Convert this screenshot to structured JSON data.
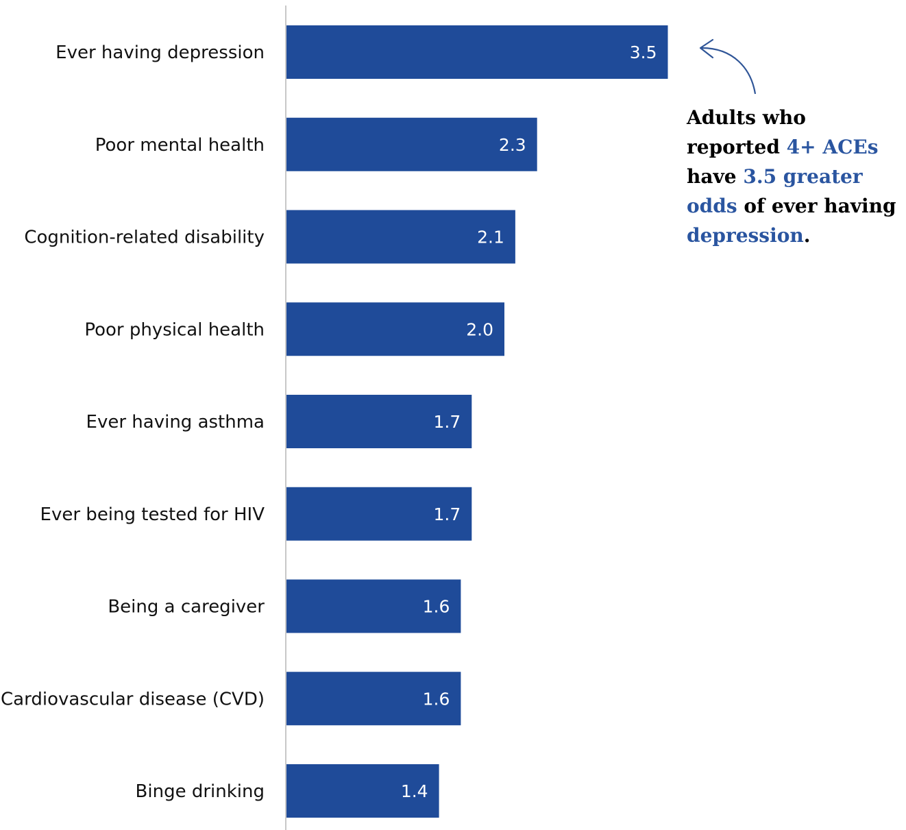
{
  "chart_data": {
    "type": "bar",
    "orientation": "horizontal",
    "categories": [
      "Ever having depression",
      "Poor mental health",
      "Cognition-related disability",
      "Poor physical health",
      "Ever having asthma",
      "Ever being tested for HIV",
      "Being a caregiver",
      "Cardiovascular disease (CVD)",
      "Binge drinking"
    ],
    "values": [
      3.5,
      2.3,
      2.1,
      2.0,
      1.7,
      1.7,
      1.6,
      1.6,
      1.4
    ],
    "value_labels": [
      "3.5",
      "2.3",
      "2.1",
      "2.0",
      "1.7",
      "1.7",
      "1.6",
      "1.6",
      "1.4"
    ],
    "xlim": [
      0,
      4
    ],
    "grid": false,
    "legend": "none",
    "colors": {
      "bar": "#1f4b99",
      "axis": "#c8c8c8",
      "highlight_text": "#2a55a0",
      "arrow": "#2f5597"
    }
  },
  "annotation": {
    "part1": "Adults who reported ",
    "part2": "4+ ACEs",
    "part3": " have ",
    "part4": "3.5 greater odds",
    "part5": " of ever having ",
    "part6": "depression",
    "part7": "."
  }
}
